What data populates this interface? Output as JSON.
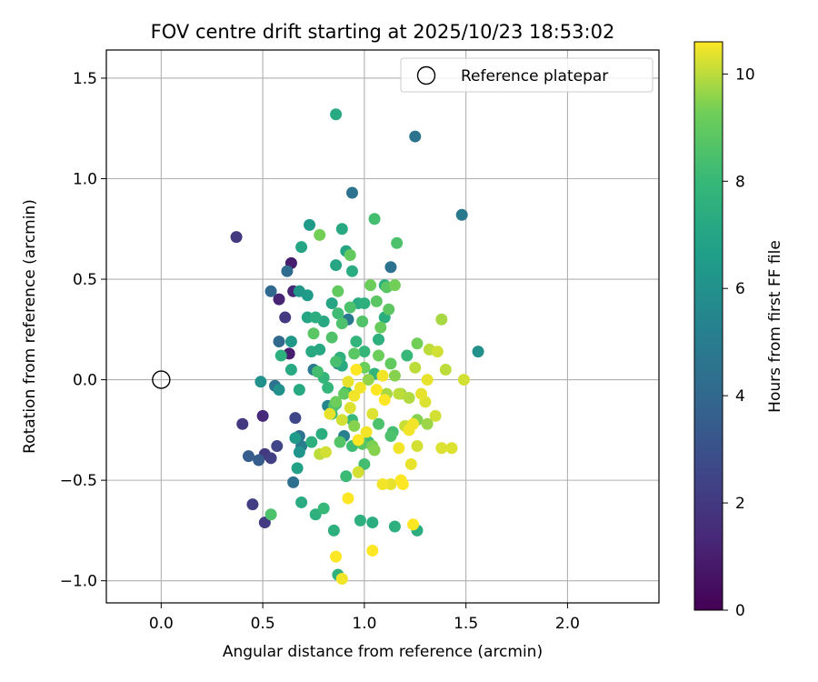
{
  "chart_data": {
    "type": "scatter",
    "title": "FOV centre drift starting at 2025/10/23 18:53:02",
    "xlabel": "Angular distance from reference (arcmin)",
    "ylabel": "Rotation from reference (arcmin)",
    "xlim": [
      -0.27,
      2.45
    ],
    "ylim": [
      -1.11,
      1.64
    ],
    "xticks": [
      0.0,
      0.5,
      1.0,
      1.5,
      2.0
    ],
    "xtick_labels": [
      "0.0",
      "0.5",
      "1.0",
      "1.5",
      "2.0"
    ],
    "yticks": [
      -1.0,
      -0.5,
      0.0,
      0.5,
      1.0,
      1.5
    ],
    "ytick_labels": [
      "−1.0",
      "−0.5",
      "0.0",
      "0.5",
      "1.0",
      "1.5"
    ],
    "grid": true,
    "legend": {
      "position": "top-right",
      "entries": [
        "Reference platepar"
      ]
    },
    "reference_point": {
      "x": 0.0,
      "y": 0.0
    },
    "colorbar": {
      "label": "Hours from first FF file",
      "range": [
        0,
        10.6
      ],
      "ticks": [
        0,
        2,
        4,
        6,
        8,
        10
      ],
      "tick_labels": [
        "0",
        "2",
        "4",
        "6",
        "8",
        "10"
      ],
      "colormap": "viridis"
    },
    "points": [
      {
        "x": 0.37,
        "y": 0.71,
        "h": 2.0
      },
      {
        "x": 0.64,
        "y": 0.58,
        "h": 1.0
      },
      {
        "x": 0.58,
        "y": 0.4,
        "h": 1.2
      },
      {
        "x": 0.65,
        "y": 0.44,
        "h": 1.3
      },
      {
        "x": 0.61,
        "y": 0.31,
        "h": 2.0
      },
      {
        "x": 0.63,
        "y": 0.13,
        "h": 1.0
      },
      {
        "x": 0.4,
        "y": -0.22,
        "h": 2.0
      },
      {
        "x": 0.5,
        "y": -0.18,
        "h": 1.4
      },
      {
        "x": 0.45,
        "y": -0.62,
        "h": 2.2
      },
      {
        "x": 0.51,
        "y": -0.71,
        "h": 2.1
      },
      {
        "x": 0.51,
        "y": -0.37,
        "h": 2.0
      },
      {
        "x": 0.54,
        "y": -0.39,
        "h": 2.3
      },
      {
        "x": 0.57,
        "y": -0.33,
        "h": 2.5
      },
      {
        "x": 0.66,
        "y": -0.19,
        "h": 2.6
      },
      {
        "x": 0.43,
        "y": -0.38,
        "h": 3.5
      },
      {
        "x": 0.48,
        "y": -0.4,
        "h": 3.5
      },
      {
        "x": 0.54,
        "y": 0.44,
        "h": 4.0
      },
      {
        "x": 0.62,
        "y": 0.54,
        "h": 4.2
      },
      {
        "x": 0.58,
        "y": 0.19,
        "h": 4.0
      },
      {
        "x": 0.56,
        "y": -0.03,
        "h": 4.5
      },
      {
        "x": 0.65,
        "y": -0.51,
        "h": 4.4
      },
      {
        "x": 0.94,
        "y": 0.93,
        "h": 4.5
      },
      {
        "x": 1.25,
        "y": 1.21,
        "h": 4.6
      },
      {
        "x": 1.48,
        "y": 0.82,
        "h": 4.8
      },
      {
        "x": 1.13,
        "y": 0.56,
        "h": 4.5
      },
      {
        "x": 0.92,
        "y": 0.3,
        "h": 4.8
      },
      {
        "x": 0.87,
        "y": 0.08,
        "h": 4.6
      },
      {
        "x": 0.75,
        "y": 0.05,
        "h": 4.9
      },
      {
        "x": 0.68,
        "y": -0.28,
        "h": 4.5
      },
      {
        "x": 0.69,
        "y": -0.33,
        "h": 5.0
      },
      {
        "x": 0.9,
        "y": -0.28,
        "h": 5.2
      },
      {
        "x": 0.82,
        "y": -0.13,
        "h": 5.5
      },
      {
        "x": 1.56,
        "y": 0.14,
        "h": 6.0
      },
      {
        "x": 0.49,
        "y": -0.01,
        "h": 6.0
      },
      {
        "x": 0.58,
        "y": -0.05,
        "h": 6.0
      },
      {
        "x": 0.68,
        "y": -0.36,
        "h": 6.2
      },
      {
        "x": 0.73,
        "y": 0.77,
        "h": 6.5
      },
      {
        "x": 0.68,
        "y": 0.44,
        "h": 6.3
      },
      {
        "x": 0.72,
        "y": 0.42,
        "h": 6.5
      },
      {
        "x": 0.64,
        "y": 0.19,
        "h": 6.3
      },
      {
        "x": 0.66,
        "y": -0.29,
        "h": 6.5
      },
      {
        "x": 0.67,
        "y": -0.44,
        "h": 6.8
      },
      {
        "x": 0.86,
        "y": 1.32,
        "h": 7.2
      },
      {
        "x": 0.69,
        "y": 0.66,
        "h": 7.0
      },
      {
        "x": 0.89,
        "y": 0.75,
        "h": 7.2
      },
      {
        "x": 0.86,
        "y": 0.57,
        "h": 7.0
      },
      {
        "x": 0.91,
        "y": 0.64,
        "h": 7.0
      },
      {
        "x": 0.94,
        "y": 0.54,
        "h": 7.3
      },
      {
        "x": 0.72,
        "y": 0.31,
        "h": 7.0
      },
      {
        "x": 0.76,
        "y": 0.31,
        "h": 7.4
      },
      {
        "x": 0.8,
        "y": 0.29,
        "h": 7.2
      },
      {
        "x": 0.84,
        "y": 0.38,
        "h": 7.0
      },
      {
        "x": 0.74,
        "y": 0.14,
        "h": 7.2
      },
      {
        "x": 0.78,
        "y": 0.15,
        "h": 7.1
      },
      {
        "x": 0.89,
        "y": 0.07,
        "h": 7.2
      },
      {
        "x": 0.97,
        "y": 0.38,
        "h": 7.3
      },
      {
        "x": 1.0,
        "y": 0.38,
        "h": 7.5
      },
      {
        "x": 1.1,
        "y": 0.47,
        "h": 7.5
      },
      {
        "x": 1.1,
        "y": 0.31,
        "h": 7.4
      },
      {
        "x": 1.07,
        "y": 0.2,
        "h": 7.5
      },
      {
        "x": 0.59,
        "y": 0.12,
        "h": 7.5
      },
      {
        "x": 0.64,
        "y": 0.05,
        "h": 7.2
      },
      {
        "x": 0.68,
        "y": -0.05,
        "h": 7.2
      },
      {
        "x": 0.69,
        "y": -0.61,
        "h": 7.3
      },
      {
        "x": 0.76,
        "y": -0.67,
        "h": 7.5
      },
      {
        "x": 0.85,
        "y": -0.75,
        "h": 7.5
      },
      {
        "x": 0.79,
        "y": -0.27,
        "h": 7.4
      },
      {
        "x": 0.74,
        "y": -0.31,
        "h": 7.5
      },
      {
        "x": 0.87,
        "y": -0.97,
        "h": 7.6
      },
      {
        "x": 0.98,
        "y": -0.7,
        "h": 7.5
      },
      {
        "x": 1.04,
        "y": -0.71,
        "h": 7.4
      },
      {
        "x": 1.15,
        "y": -0.73,
        "h": 7.5
      },
      {
        "x": 1.26,
        "y": -0.75,
        "h": 7.4
      },
      {
        "x": 0.86,
        "y": -0.12,
        "h": 7.8
      },
      {
        "x": 0.91,
        "y": -0.06,
        "h": 7.8
      },
      {
        "x": 0.96,
        "y": 0.19,
        "h": 7.8
      },
      {
        "x": 1.0,
        "y": 0.14,
        "h": 7.9
      },
      {
        "x": 1.05,
        "y": 0.03,
        "h": 7.8
      },
      {
        "x": 0.82,
        "y": -0.04,
        "h": 7.9
      },
      {
        "x": 0.88,
        "y": 0.11,
        "h": 7.6
      },
      {
        "x": 0.8,
        "y": 0.01,
        "h": 7.9
      },
      {
        "x": 1.21,
        "y": 0.12,
        "h": 8.0
      },
      {
        "x": 0.94,
        "y": -0.2,
        "h": 8.0
      },
      {
        "x": 0.84,
        "y": -0.17,
        "h": 8.2
      },
      {
        "x": 0.91,
        "y": -0.48,
        "h": 8.1
      },
      {
        "x": 0.94,
        "y": -0.33,
        "h": 8.2
      },
      {
        "x": 1.0,
        "y": -0.42,
        "h": 8.3
      },
      {
        "x": 1.02,
        "y": -0.31,
        "h": 8.2
      },
      {
        "x": 1.14,
        "y": -0.26,
        "h": 8.3
      },
      {
        "x": 1.13,
        "y": -0.28,
        "h": 8.5
      },
      {
        "x": 1.07,
        "y": -0.22,
        "h": 8.5
      },
      {
        "x": 0.77,
        "y": 0.04,
        "h": 8.3
      },
      {
        "x": 0.87,
        "y": 0.33,
        "h": 8.2
      },
      {
        "x": 0.89,
        "y": 0.28,
        "h": 8.5
      },
      {
        "x": 0.93,
        "y": 0.36,
        "h": 8.5
      },
      {
        "x": 1.05,
        "y": 0.8,
        "h": 8.3
      },
      {
        "x": 1.16,
        "y": 0.68,
        "h": 8.5
      },
      {
        "x": 0.54,
        "y": -0.67,
        "h": 8.5
      },
      {
        "x": 0.85,
        "y": -0.13,
        "h": 8.5
      },
      {
        "x": 0.88,
        "y": -0.31,
        "h": 8.7
      },
      {
        "x": 0.99,
        "y": -0.32,
        "h": 8.8
      },
      {
        "x": 1.11,
        "y": 0.46,
        "h": 8.8
      },
      {
        "x": 1.06,
        "y": 0.39,
        "h": 8.8
      },
      {
        "x": 1.12,
        "y": 0.35,
        "h": 8.9
      },
      {
        "x": 0.75,
        "y": 0.23,
        "h": 8.8
      },
      {
        "x": 0.93,
        "y": 0.62,
        "h": 9.0
      },
      {
        "x": 0.78,
        "y": 0.72,
        "h": 9.3
      },
      {
        "x": 0.87,
        "y": 0.44,
        "h": 9.0
      },
      {
        "x": 1.03,
        "y": 0.47,
        "h": 9.2
      },
      {
        "x": 1.15,
        "y": 0.47,
        "h": 9.3
      },
      {
        "x": 1.07,
        "y": 0.12,
        "h": 9.2
      },
      {
        "x": 1.13,
        "y": 0.08,
        "h": 9.0
      },
      {
        "x": 1.26,
        "y": 0.18,
        "h": 9.3
      },
      {
        "x": 0.86,
        "y": -0.11,
        "h": 9.2
      },
      {
        "x": 0.95,
        "y": -0.23,
        "h": 9.5
      },
      {
        "x": 1.04,
        "y": -0.33,
        "h": 9.4
      },
      {
        "x": 1.05,
        "y": -0.35,
        "h": 9.5
      },
      {
        "x": 1.26,
        "y": -0.2,
        "h": 9.5
      },
      {
        "x": 1.31,
        "y": -0.22,
        "h": 9.7
      },
      {
        "x": 1.38,
        "y": 0.3,
        "h": 9.8
      },
      {
        "x": 1.18,
        "y": -0.07,
        "h": 9.8
      },
      {
        "x": 1.22,
        "y": -0.09,
        "h": 9.9
      },
      {
        "x": 1.25,
        "y": 0.06,
        "h": 10.0
      },
      {
        "x": 1.32,
        "y": 0.15,
        "h": 10.0
      },
      {
        "x": 1.36,
        "y": 0.14,
        "h": 10.2
      },
      {
        "x": 1.4,
        "y": 0.05,
        "h": 10.0
      },
      {
        "x": 1.49,
        "y": 0.0,
        "h": 10.2
      },
      {
        "x": 1.31,
        "y": 0.0,
        "h": 10.4
      },
      {
        "x": 1.3,
        "y": -0.11,
        "h": 10.3
      },
      {
        "x": 1.28,
        "y": -0.07,
        "h": 10.4
      },
      {
        "x": 1.35,
        "y": -0.18,
        "h": 10.2
      },
      {
        "x": 1.38,
        "y": -0.34,
        "h": 10.3
      },
      {
        "x": 1.43,
        "y": -0.34,
        "h": 10.3
      },
      {
        "x": 1.24,
        "y": -0.22,
        "h": 10.5
      },
      {
        "x": 1.22,
        "y": -0.25,
        "h": 10.5
      },
      {
        "x": 1.26,
        "y": -0.33,
        "h": 10.2
      },
      {
        "x": 1.23,
        "y": -0.42,
        "h": 10.4
      },
      {
        "x": 1.17,
        "y": -0.34,
        "h": 10.5
      },
      {
        "x": 1.18,
        "y": -0.5,
        "h": 10.6
      },
      {
        "x": 1.19,
        "y": -0.52,
        "h": 10.6
      },
      {
        "x": 1.13,
        "y": -0.52,
        "h": 10.4
      },
      {
        "x": 1.09,
        "y": -0.52,
        "h": 10.5
      },
      {
        "x": 1.24,
        "y": -0.72,
        "h": 10.6
      },
      {
        "x": 1.04,
        "y": -0.85,
        "h": 10.6
      },
      {
        "x": 0.86,
        "y": -0.88,
        "h": 10.6
      },
      {
        "x": 0.89,
        "y": -0.99,
        "h": 10.5
      },
      {
        "x": 0.92,
        "y": -0.59,
        "h": 10.6
      },
      {
        "x": 0.98,
        "y": -0.04,
        "h": 10.5
      },
      {
        "x": 1.06,
        "y": -0.05,
        "h": 10.6
      },
      {
        "x": 1.1,
        "y": -0.1,
        "h": 10.6
      },
      {
        "x": 1.09,
        "y": 0.02,
        "h": 10.5
      },
      {
        "x": 0.92,
        "y": -0.01,
        "h": 10.4
      },
      {
        "x": 0.96,
        "y": 0.05,
        "h": 10.6
      },
      {
        "x": 0.95,
        "y": -0.08,
        "h": 10.5
      },
      {
        "x": 1.04,
        "y": -0.17,
        "h": 10.3
      },
      {
        "x": 1.01,
        "y": -0.26,
        "h": 10.5
      },
      {
        "x": 0.97,
        "y": -0.3,
        "h": 10.6
      },
      {
        "x": 0.93,
        "y": -0.14,
        "h": 10.3
      },
      {
        "x": 0.89,
        "y": -0.2,
        "h": 10.2
      },
      {
        "x": 0.83,
        "y": -0.17,
        "h": 10.4
      },
      {
        "x": 0.78,
        "y": -0.37,
        "h": 10.0
      },
      {
        "x": 0.81,
        "y": -0.36,
        "h": 10.2
      },
      {
        "x": 0.97,
        "y": -0.46,
        "h": 10.2
      },
      {
        "x": 0.8,
        "y": -0.64,
        "h": 8.0
      },
      {
        "x": 0.9,
        "y": -0.07,
        "h": 9.0
      },
      {
        "x": 1.02,
        "y": 0.0,
        "h": 9.6
      },
      {
        "x": 1.0,
        "y": 0.06,
        "h": 9.2
      },
      {
        "x": 0.99,
        "y": 0.29,
        "h": 8.6
      },
      {
        "x": 0.86,
        "y": 0.09,
        "h": 8.4
      },
      {
        "x": 0.84,
        "y": 0.21,
        "h": 8.6
      },
      {
        "x": 0.95,
        "y": 0.13,
        "h": 8.8
      },
      {
        "x": 1.08,
        "y": 0.26,
        "h": 9.1
      },
      {
        "x": 1.15,
        "y": 0.02,
        "h": 9.5
      },
      {
        "x": 1.11,
        "y": -0.07,
        "h": 9.8
      },
      {
        "x": 1.2,
        "y": -0.23,
        "h": 10.1
      },
      {
        "x": 1.17,
        "y": -0.07,
        "h": 10.0
      }
    ]
  }
}
